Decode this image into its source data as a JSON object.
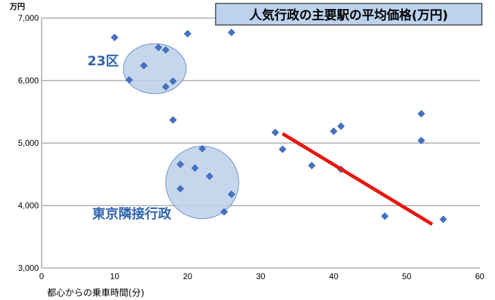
{
  "chart_data": {
    "type": "scatter",
    "title": "人気行政の主要駅の平均価格(万円)",
    "xlabel": "都心からの乗車時間(分)",
    "ylabel": "万円",
    "xlim": [
      0,
      60
    ],
    "ylim": [
      3000,
      7000
    ],
    "x_ticks": [
      "0",
      "10",
      "20",
      "30",
      "40",
      "50",
      "60"
    ],
    "y_ticks": [
      "3,000",
      "4,000",
      "5,000",
      "6,000",
      "7,000"
    ],
    "grid": true,
    "points": [
      {
        "x": 10,
        "y": 6690
      },
      {
        "x": 12,
        "y": 6010
      },
      {
        "x": 14,
        "y": 6240
      },
      {
        "x": 16,
        "y": 6530
      },
      {
        "x": 17,
        "y": 6490
      },
      {
        "x": 17,
        "y": 5900
      },
      {
        "x": 18,
        "y": 5990
      },
      {
        "x": 20,
        "y": 6750
      },
      {
        "x": 26,
        "y": 6770
      },
      {
        "x": 18,
        "y": 5370
      },
      {
        "x": 19,
        "y": 4660
      },
      {
        "x": 19,
        "y": 4270
      },
      {
        "x": 21,
        "y": 4600
      },
      {
        "x": 22,
        "y": 4910
      },
      {
        "x": 23,
        "y": 4470
      },
      {
        "x": 25,
        "y": 3900
      },
      {
        "x": 26,
        "y": 4180
      },
      {
        "x": 32,
        "y": 5170
      },
      {
        "x": 33,
        "y": 4900
      },
      {
        "x": 37,
        "y": 4640
      },
      {
        "x": 40,
        "y": 5190
      },
      {
        "x": 41,
        "y": 5270
      },
      {
        "x": 41,
        "y": 4580
      },
      {
        "x": 47,
        "y": 3830
      },
      {
        "x": 52,
        "y": 5470
      },
      {
        "x": 52,
        "y": 5040
      },
      {
        "x": 55,
        "y": 3780
      }
    ],
    "trendline": {
      "x": [
        33,
        53.5
      ],
      "y": [
        5150,
        3700
      ],
      "color": "#e8150d"
    },
    "groups": [
      {
        "label": "23区",
        "cx": 15.5,
        "cy": 6190,
        "rx": 4.3,
        "ry": 400
      },
      {
        "label": "東京隣接行政",
        "cx": 22,
        "cy": 4370,
        "rx": 5,
        "ry": 580
      }
    ],
    "colors": {
      "marker": "#4472c4",
      "group_fill": "#bcd0ea",
      "group_stroke": "#6b8fc8",
      "group_label": "#2e64b0",
      "title_bg": "#bcd3ee",
      "grid": "#7f7f7f"
    }
  }
}
